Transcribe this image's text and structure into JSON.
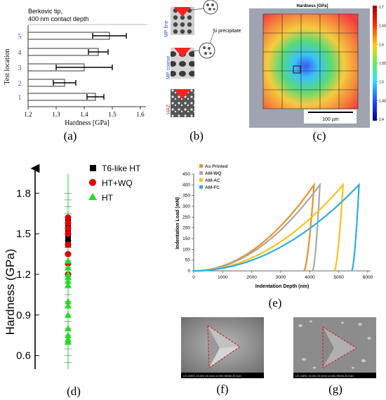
{
  "figure": {
    "captions": {
      "a": "(a)",
      "b": "(b)",
      "c": "(c)",
      "d": "(d)",
      "e": "(e)",
      "f": "(f)",
      "g": "(g)"
    },
    "colors": {
      "blue_label": "#2a4fd6",
      "red_label": "#d0282a",
      "orange": "#f0902a",
      "gray": "#a8a8a8",
      "yellow": "#f5c518",
      "skyblue": "#2ab0e0",
      "green": "#22dd22",
      "red_marker": "#e00000"
    }
  },
  "panel_a": {
    "note_line1": "Berkovic tip,",
    "note_line2": "400 nm contact depth",
    "ylabel": "Test location",
    "xlabel": "Hardness [GPa]"
  },
  "panel_b": {
    "label_mp_fine": "MP fine",
    "label_mp_coarse": "MP coarse",
    "label_haz": "HAZ",
    "label_si": "Si precipitate"
  },
  "panel_c": {
    "title": "Hardness [GPa]",
    "scalebar": "100 µm",
    "colorbar_ticks": [
      "1.7",
      "1.65",
      "1.6",
      "1.55",
      "1.5",
      "1.45",
      "1.4"
    ]
  },
  "panel_f": {
    "footer": "UT-CMSC 15.0kV 24.4mm x2.00k SE(M)        20.0um"
  },
  "panel_g": {
    "footer": "UT-CMSC 15.0kV 25.3mm x2.00k SE(M)        20.0um"
  },
  "chart_data": [
    {
      "panel": "a",
      "type": "bar",
      "orientation": "horizontal",
      "categories": [
        "1",
        "2",
        "3",
        "4",
        "5"
      ],
      "values": [
        1.44,
        1.33,
        1.4,
        1.45,
        1.49
      ],
      "errors": [
        0.03,
        0.04,
        0.1,
        0.035,
        0.06
      ],
      "xlabel": "Hardness [GPa]",
      "ylabel": "Test location",
      "xlim": [
        1.2,
        1.6
      ],
      "xticks": [
        "1.2",
        "1.3",
        "1.4",
        "1.5",
        "1.6"
      ]
    },
    {
      "panel": "d",
      "type": "scatter",
      "ylabel": "Hardness (GPa)",
      "yticks": [
        "0.6",
        "0.9",
        "1.2",
        "1.5",
        "1.8"
      ],
      "ylim": [
        0.5,
        1.9
      ],
      "legend_position": "top-right",
      "series": [
        {
          "name": "T6-like HT",
          "color": "#000000",
          "marker": "square",
          "values": [
            1.6,
            1.58,
            1.55,
            1.52,
            1.5,
            1.48,
            1.46,
            1.44,
            1.42
          ]
        },
        {
          "name": "HT+WQ",
          "color": "#e00000",
          "marker": "circle",
          "values": [
            1.62,
            1.58,
            1.54,
            1.5,
            1.42,
            1.35,
            1.28,
            1.2
          ]
        },
        {
          "name": "HT",
          "color": "#22dd22",
          "marker": "triangle",
          "values": [
            1.3,
            1.25,
            1.2,
            1.18,
            1.15,
            1.12,
            1.0,
            0.97,
            0.9,
            0.8,
            0.75,
            0.72,
            0.7
          ]
        }
      ]
    },
    {
      "panel": "e",
      "type": "line",
      "xlabel": "Indentation Depth (nm)",
      "ylabel": "Indentation Load (mN)",
      "xlim": [
        0,
        6000
      ],
      "ylim": [
        0,
        450
      ],
      "xticks": [
        "0",
        "1000",
        "2000",
        "3000",
        "4000",
        "5000",
        "6000"
      ],
      "yticks": [
        "0",
        "50",
        "100",
        "150",
        "200",
        "250",
        "300",
        "350",
        "400",
        "450"
      ],
      "legend_position": "top-left",
      "series": [
        {
          "name": "As Printed",
          "color": "#f0902a",
          "max_depth": 4150,
          "final_depth": 3800,
          "max_load": 400
        },
        {
          "name": "AM-WQ",
          "color": "#a8a8a8",
          "max_depth": 4350,
          "final_depth": 4100,
          "max_load": 400
        },
        {
          "name": "AM-AC",
          "color": "#f5c518",
          "max_depth": 5150,
          "final_depth": 4850,
          "max_load": 400
        },
        {
          "name": "AM-FC",
          "color": "#2ab0e0",
          "max_depth": 5700,
          "final_depth": 5450,
          "max_load": 400
        }
      ]
    }
  ]
}
